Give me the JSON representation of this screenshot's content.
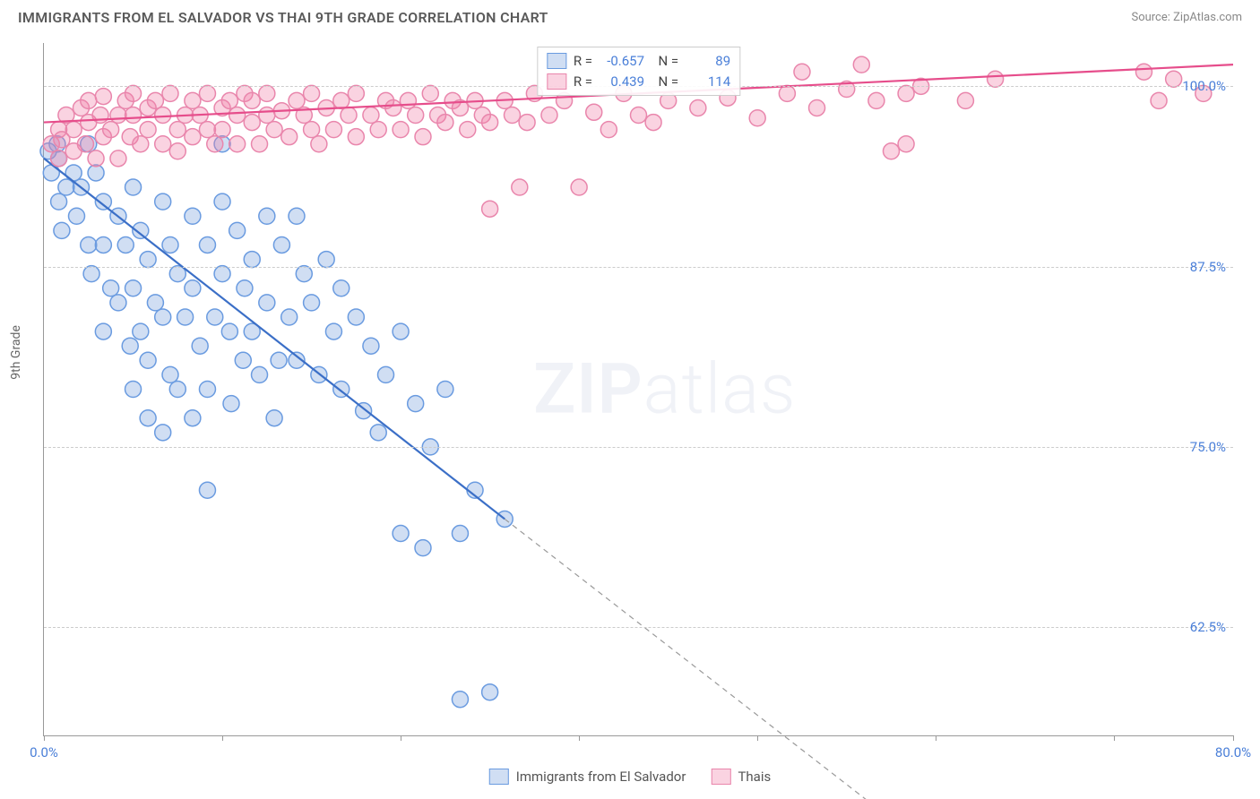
{
  "title": "IMMIGRANTS FROM EL SALVADOR VS THAI 9TH GRADE CORRELATION CHART",
  "source": "Source: ZipAtlas.com",
  "ylabel": "9th Grade",
  "watermark": {
    "bold": "ZIP",
    "light": "atlas"
  },
  "xlim": [
    0,
    80
  ],
  "ylim": [
    55,
    103
  ],
  "xtick_positions": [
    0,
    12,
    24,
    36,
    48,
    60,
    72,
    80
  ],
  "xtick_labels": {
    "0": "0.0%",
    "80": "80.0%"
  },
  "ytick_positions": [
    62.5,
    75.0,
    87.5,
    100.0
  ],
  "ytick_labels": [
    "62.5%",
    "75.0%",
    "87.5%",
    "100.0%"
  ],
  "grid_color": "#cccccc",
  "background_color": "#ffffff",
  "axis_color": "#999999",
  "tick_label_color": "#4a7fd8",
  "series": [
    {
      "name": "Immigrants from El Salvador",
      "color_fill": "rgba(120,160,220,0.35)",
      "color_stroke": "#6a9be0",
      "line_color": "#3b6fc7",
      "dash_color": "#999999",
      "marker_r": 9,
      "R": "-0.657",
      "N": "89",
      "trend": {
        "x1": 0,
        "y1": 95,
        "x2": 31,
        "y2": 70,
        "dash_x2": 56,
        "dash_y2": 50
      },
      "points": [
        [
          1,
          95
        ],
        [
          1.5,
          93
        ],
        [
          0.9,
          96
        ],
        [
          0.3,
          95.5
        ],
        [
          0.5,
          94
        ],
        [
          1,
          92
        ],
        [
          1.2,
          90
        ],
        [
          2,
          94
        ],
        [
          2.5,
          93
        ],
        [
          2.2,
          91
        ],
        [
          3,
          96
        ],
        [
          3.5,
          94
        ],
        [
          3,
          89
        ],
        [
          3.2,
          87
        ],
        [
          4,
          92
        ],
        [
          4,
          89
        ],
        [
          4.5,
          86
        ],
        [
          4,
          83
        ],
        [
          5,
          91
        ],
        [
          5.5,
          89
        ],
        [
          5,
          85
        ],
        [
          5.8,
          82
        ],
        [
          6,
          93
        ],
        [
          6.5,
          90
        ],
        [
          6,
          86
        ],
        [
          6.5,
          83
        ],
        [
          6,
          79
        ],
        [
          7,
          88
        ],
        [
          7.5,
          85
        ],
        [
          7,
          81
        ],
        [
          7,
          77
        ],
        [
          8,
          92
        ],
        [
          8.5,
          89
        ],
        [
          8,
          84
        ],
        [
          8.5,
          80
        ],
        [
          8,
          76
        ],
        [
          9,
          87
        ],
        [
          9.5,
          84
        ],
        [
          9,
          79
        ],
        [
          10,
          91
        ],
        [
          10,
          86
        ],
        [
          10.5,
          82
        ],
        [
          10,
          77
        ],
        [
          11,
          89
        ],
        [
          11.5,
          84
        ],
        [
          11,
          79
        ],
        [
          11,
          72
        ],
        [
          12,
          92
        ],
        [
          12,
          87
        ],
        [
          12.5,
          83
        ],
        [
          12.6,
          78
        ],
        [
          13,
          90
        ],
        [
          13.5,
          86
        ],
        [
          13.4,
          81
        ],
        [
          14,
          88
        ],
        [
          14,
          83
        ],
        [
          14.5,
          80
        ],
        [
          15,
          91
        ],
        [
          15,
          85
        ],
        [
          15.8,
          81
        ],
        [
          15.5,
          77
        ],
        [
          16,
          89
        ],
        [
          16.5,
          84
        ],
        [
          17,
          91
        ],
        [
          17.5,
          87
        ],
        [
          17,
          81
        ],
        [
          18,
          85
        ],
        [
          18.5,
          80
        ],
        [
          19,
          88
        ],
        [
          19.5,
          83
        ],
        [
          20,
          86
        ],
        [
          20,
          79
        ],
        [
          21,
          84
        ],
        [
          21.5,
          77.5
        ],
        [
          22,
          82
        ],
        [
          22.5,
          76
        ],
        [
          23,
          80
        ],
        [
          24,
          83
        ],
        [
          24,
          69
        ],
        [
          25,
          78
        ],
        [
          25.5,
          68
        ],
        [
          26,
          75
        ],
        [
          27,
          79
        ],
        [
          28,
          69
        ],
        [
          28,
          57.5
        ],
        [
          29,
          72
        ],
        [
          30,
          58
        ],
        [
          31,
          70
        ],
        [
          12,
          96
        ]
      ]
    },
    {
      "name": "Thais",
      "color_fill": "rgba(240,130,170,0.35)",
      "color_stroke": "#e986ac",
      "line_color": "#e64d8b",
      "marker_r": 9,
      "R": "0.439",
      "N": "114",
      "trend": {
        "x1": 0,
        "y1": 97.5,
        "x2": 80,
        "y2": 101.5
      },
      "points": [
        [
          0.5,
          96
        ],
        [
          1,
          97
        ],
        [
          1,
          95
        ],
        [
          1.5,
          98
        ],
        [
          1.2,
          96.3
        ],
        [
          2,
          97
        ],
        [
          2,
          95.5
        ],
        [
          2.5,
          98.5
        ],
        [
          2.8,
          96
        ],
        [
          3,
          97.5
        ],
        [
          3,
          99
        ],
        [
          3.5,
          95
        ],
        [
          3.8,
          98
        ],
        [
          4,
          96.5
        ],
        [
          4,
          99.3
        ],
        [
          4.5,
          97
        ],
        [
          5,
          98
        ],
        [
          5,
          95
        ],
        [
          5.5,
          99
        ],
        [
          5.8,
          96.5
        ],
        [
          6,
          98
        ],
        [
          6,
          99.5
        ],
        [
          6.5,
          96
        ],
        [
          7,
          98.5
        ],
        [
          7,
          97
        ],
        [
          7.5,
          99
        ],
        [
          8,
          96
        ],
        [
          8,
          98
        ],
        [
          8.5,
          99.5
        ],
        [
          9,
          97
        ],
        [
          9,
          95.5
        ],
        [
          9.5,
          98
        ],
        [
          10,
          99
        ],
        [
          10,
          96.5
        ],
        [
          10.5,
          98
        ],
        [
          11,
          97
        ],
        [
          11,
          99.5
        ],
        [
          11.5,
          96
        ],
        [
          12,
          98.5
        ],
        [
          12,
          97
        ],
        [
          12.5,
          99
        ],
        [
          13,
          98
        ],
        [
          13,
          96
        ],
        [
          13.5,
          99.5
        ],
        [
          14,
          97.5
        ],
        [
          14,
          99
        ],
        [
          14.5,
          96
        ],
        [
          15,
          98
        ],
        [
          15,
          99.5
        ],
        [
          15.5,
          97
        ],
        [
          16,
          98.3
        ],
        [
          16.5,
          96.5
        ],
        [
          17,
          99
        ],
        [
          17.5,
          98
        ],
        [
          18,
          97
        ],
        [
          18,
          99.5
        ],
        [
          18.5,
          96
        ],
        [
          19,
          98.5
        ],
        [
          19.5,
          97
        ],
        [
          20,
          99
        ],
        [
          20.5,
          98
        ],
        [
          21,
          96.5
        ],
        [
          21,
          99.5
        ],
        [
          22,
          98
        ],
        [
          22.5,
          97
        ],
        [
          23,
          99
        ],
        [
          23.5,
          98.5
        ],
        [
          24,
          97
        ],
        [
          24.5,
          99
        ],
        [
          25,
          98
        ],
        [
          25.5,
          96.5
        ],
        [
          26,
          99.5
        ],
        [
          26.5,
          98
        ],
        [
          27,
          97.5
        ],
        [
          27.5,
          99
        ],
        [
          28,
          98.5
        ],
        [
          28.5,
          97
        ],
        [
          29,
          99
        ],
        [
          29.5,
          98
        ],
        [
          30,
          97.5
        ],
        [
          30,
          91.5
        ],
        [
          31,
          99
        ],
        [
          31.5,
          98
        ],
        [
          32,
          93
        ],
        [
          32.5,
          97.5
        ],
        [
          33,
          99.5
        ],
        [
          34,
          98
        ],
        [
          35,
          99
        ],
        [
          36,
          93
        ],
        [
          37,
          98.2
        ],
        [
          38,
          97
        ],
        [
          39,
          99.5
        ],
        [
          40,
          98
        ],
        [
          41,
          97.5
        ],
        [
          42,
          99
        ],
        [
          44,
          98.5
        ],
        [
          46,
          99.2
        ],
        [
          48,
          97.8
        ],
        [
          50,
          99.5
        ],
        [
          51,
          101
        ],
        [
          52,
          98.5
        ],
        [
          54,
          99.8
        ],
        [
          55,
          101.5
        ],
        [
          56,
          99
        ],
        [
          57,
          95.5
        ],
        [
          58,
          99.5
        ],
        [
          58,
          96
        ],
        [
          59,
          100
        ],
        [
          62,
          99
        ],
        [
          64,
          100.5
        ],
        [
          74,
          101
        ],
        [
          75,
          99
        ],
        [
          76,
          100.5
        ],
        [
          78,
          99.5
        ]
      ]
    }
  ],
  "bottom_legend": [
    {
      "label": "Immigrants from El Salvador",
      "fill": "rgba(120,160,220,0.35)",
      "stroke": "#6a9be0"
    },
    {
      "label": "Thais",
      "fill": "rgba(240,130,170,0.35)",
      "stroke": "#e986ac"
    }
  ],
  "styling": {
    "title_fontsize": 16,
    "title_color": "#5a5a5a",
    "source_fontsize": 13,
    "source_color": "#888888",
    "label_fontsize": 14,
    "tick_fontsize": 15,
    "legend_fontsize": 15
  }
}
